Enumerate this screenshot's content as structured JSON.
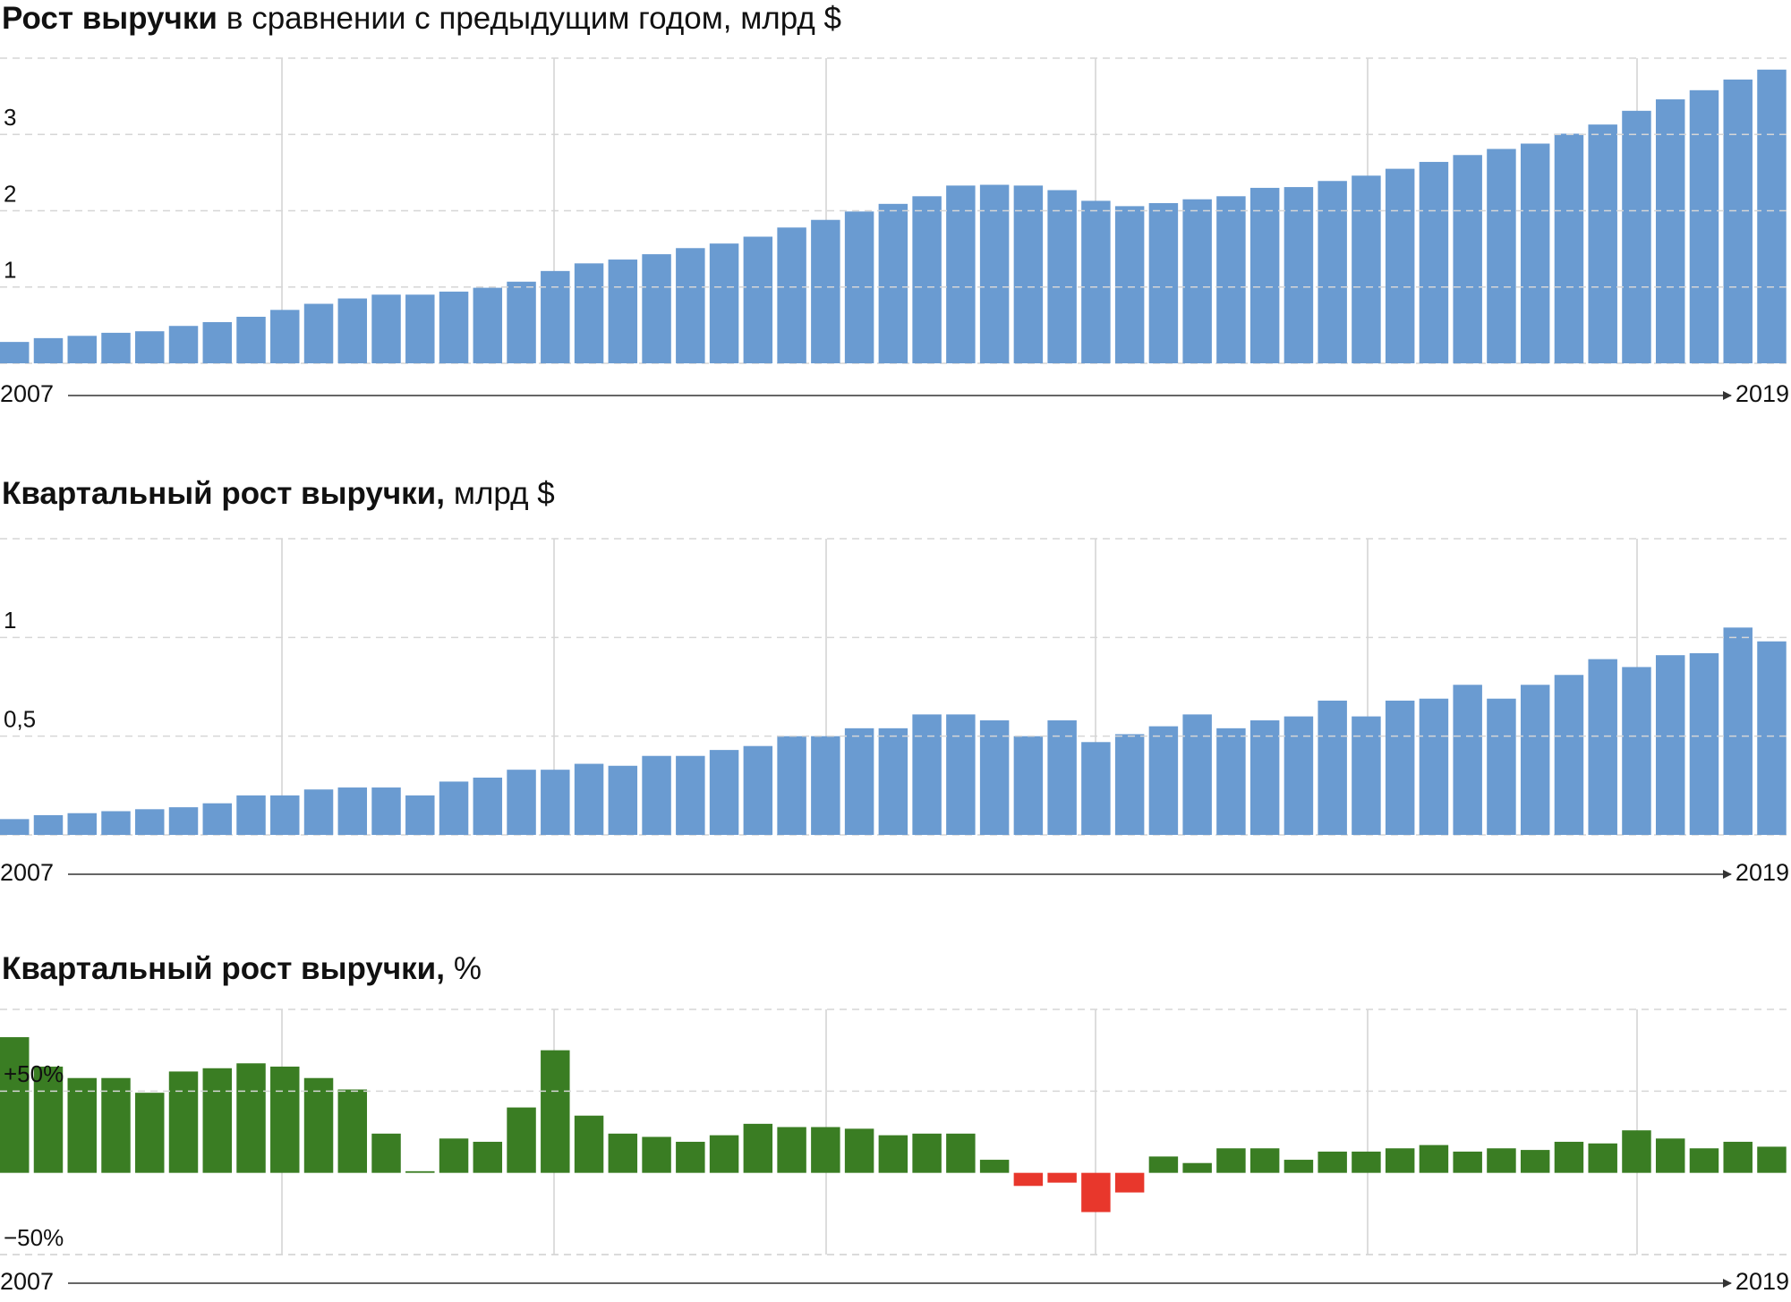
{
  "chart_data": [
    {
      "type": "bar",
      "title": "Рост выручки",
      "title_suffix": "в сравнении с предыдущим годом, млрд $",
      "x_labels": [
        "2007",
        "2019"
      ],
      "color": "#6a9bd1",
      "values": [
        0.28,
        0.33,
        0.36,
        0.4,
        0.42,
        0.49,
        0.54,
        0.61,
        0.7,
        0.78,
        0.85,
        0.9,
        0.9,
        0.94,
        0.99,
        1.07,
        1.21,
        1.31,
        1.36,
        1.43,
        1.51,
        1.57,
        1.66,
        1.78,
        1.88,
        1.99,
        2.09,
        2.19,
        2.33,
        2.34,
        2.33,
        2.27,
        2.13,
        2.06,
        2.1,
        2.15,
        2.19,
        2.3,
        2.31,
        2.39,
        2.46,
        2.55,
        2.64,
        2.73,
        2.81,
        2.88,
        3.01,
        3.13,
        3.31,
        3.46,
        3.58,
        3.72,
        3.85
      ],
      "ylim": [
        0,
        4
      ],
      "yticks": [
        1,
        2,
        3
      ],
      "grid": true
    },
    {
      "type": "bar",
      "title": "Квартальный рост выручки,",
      "title_suffix": "млрд $",
      "x_labels": [
        "2007",
        "2019"
      ],
      "color": "#6a9bd1",
      "values": [
        0.08,
        0.1,
        0.11,
        0.12,
        0.13,
        0.14,
        0.16,
        0.2,
        0.2,
        0.23,
        0.24,
        0.24,
        0.2,
        0.27,
        0.29,
        0.33,
        0.33,
        0.36,
        0.35,
        0.4,
        0.4,
        0.43,
        0.45,
        0.5,
        0.5,
        0.54,
        0.54,
        0.61,
        0.61,
        0.58,
        0.5,
        0.58,
        0.47,
        0.51,
        0.55,
        0.61,
        0.54,
        0.58,
        0.6,
        0.68,
        0.6,
        0.68,
        0.69,
        0.76,
        0.69,
        0.76,
        0.81,
        0.89,
        0.85,
        0.91,
        0.92,
        1.05,
        0.98
      ],
      "ylim": [
        0,
        1.5
      ],
      "yticks": [
        {
          "value": 0.5,
          "label": "0,5"
        },
        1
      ],
      "grid": true
    },
    {
      "type": "bar",
      "title": "Квартальный рост выручки,",
      "title_suffix": "%",
      "x_labels": [
        "2007",
        "2019"
      ],
      "color": "#3a7d23",
      "negative_color": "#e8372c",
      "values": [
        83,
        65,
        58,
        58,
        49,
        62,
        64,
        67,
        65,
        58,
        51,
        24,
        1,
        21,
        19,
        40,
        75,
        35,
        24,
        22,
        19,
        23,
        30,
        28,
        28,
        27,
        23,
        24,
        24,
        8,
        -8,
        -6,
        -24,
        -12,
        10,
        6,
        15,
        15,
        8,
        13,
        13,
        15,
        17,
        13,
        15,
        14,
        19,
        18,
        26,
        21,
        15,
        19,
        16
      ],
      "ylim": [
        -50,
        100
      ],
      "yticks": [
        {
          "value": 50,
          "label": "+50%"
        },
        {
          "value": -50,
          "label": "−50%"
        }
      ],
      "grid": true
    }
  ]
}
